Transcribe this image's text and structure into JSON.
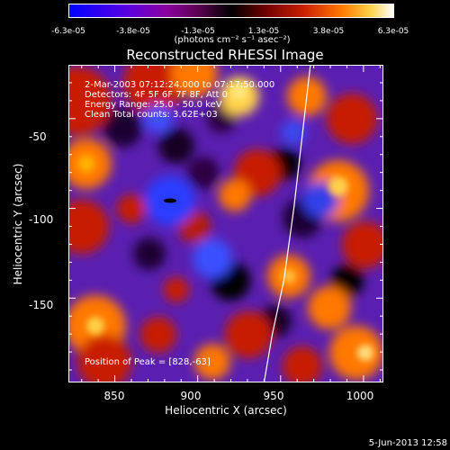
{
  "colorbar": {
    "ticks": [
      "-6.3e-05",
      "-3.8e-05",
      "-1.3e-05",
      "1.3e-05",
      "3.8e-05",
      "6.3e-05"
    ],
    "unit": "(photons cm⁻² s⁻¹ asec⁻²)"
  },
  "info": {
    "time": "2-Mar-2003 07:12:24.000 to 07:17:50.000",
    "detectors": "Detectors: 4F 5F 6F 7F 8F, Att 0",
    "energy": "Energy Range: 25.0 - 50.0 keV",
    "clean": "Clean     Total counts: 3.62E+03",
    "peak": "Position of Peak = [828,-63]"
  },
  "stamp": "5-Jun-2013 12:58",
  "chart_data": {
    "type": "heatmap",
    "title": "Reconstructed RHESSI Image",
    "xlabel": "Heliocentric X (arcsec)",
    "ylabel": "Heliocentric Y (arcsec)",
    "xlim": [
      822,
      1012
    ],
    "ylim": [
      -197,
      -20
    ],
    "xticks": [
      850,
      900,
      950,
      1000
    ],
    "yticks": [
      -50,
      -100,
      -150
    ],
    "xtick_labels": [
      "850",
      "900",
      "950",
      "1000"
    ],
    "ytick_labels": [
      "-50",
      "-100",
      "-150"
    ],
    "zlim": [
      -6.3e-05,
      6.3e-05
    ],
    "colormap": [
      "#0000ff",
      "#5a00e0",
      "#8a00a0",
      "#000000",
      "#c81e00",
      "#ff7800",
      "#ffffff"
    ],
    "limb_curve": [
      [
        968,
        -20
      ],
      [
        963,
        -60
      ],
      [
        958,
        -100
      ],
      [
        952,
        -140
      ],
      [
        945,
        -170
      ],
      [
        940,
        -197
      ]
    ],
    "peak_position": [
      828,
      -63
    ]
  }
}
